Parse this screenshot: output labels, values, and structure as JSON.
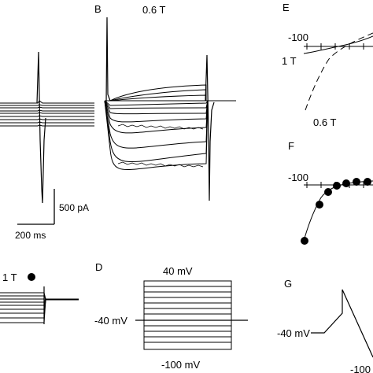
{
  "figure": {
    "panels": {
      "B": {
        "letter": "B",
        "condition": "0.6 T"
      },
      "C": {
        "condition": "1 T"
      },
      "D": {
        "letter": "D",
        "top_voltage": "40 mV",
        "hold_voltage": "-40 mV",
        "bottom_voltage": "-100 mV"
      },
      "E": {
        "letter": "E",
        "axis_tick": "-100",
        "curve_1": "1 T",
        "curve_2": "0.6 T"
      },
      "F": {
        "letter": "F",
        "axis_tick": "-100"
      },
      "G": {
        "letter": "G",
        "hold_voltage": "-40 mV",
        "ramp_bottom": "-100"
      }
    },
    "scalebar": {
      "current": "500 pA",
      "time": "200 ms"
    },
    "colors": {
      "ink": "#000000",
      "background": "#ffffff"
    }
  }
}
